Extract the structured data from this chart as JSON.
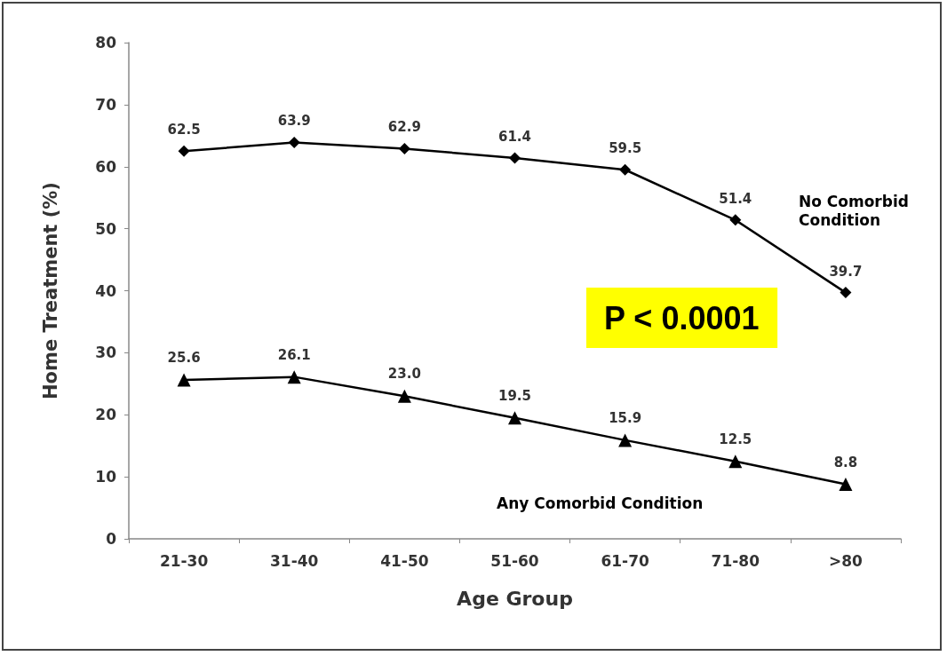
{
  "chart_data": {
    "type": "line",
    "xlabel": "Age Group",
    "ylabel": "Home Treatment (%)",
    "categories": [
      "21-30",
      "31-40",
      "41-50",
      "51-60",
      "61-70",
      "71-80",
      ">80"
    ],
    "series": [
      {
        "name": "No Comorbid Condition",
        "color": "#000000",
        "marker": "diamond",
        "values": [
          62.5,
          63.9,
          62.9,
          61.4,
          59.5,
          51.4,
          39.7
        ],
        "value_labels": [
          "62.5",
          "63.9",
          "62.9",
          "61.4",
          "59.5",
          "51.4",
          "39.7"
        ]
      },
      {
        "name": "Any Comorbid Condition",
        "color": "#000000",
        "marker": "triangle",
        "values": [
          25.6,
          26.1,
          23.0,
          19.5,
          15.9,
          12.5,
          8.8
        ],
        "value_labels": [
          "25.6",
          "26.1",
          "23.0",
          "19.5",
          "15.9",
          "12.5",
          "8.8"
        ]
      }
    ],
    "ylim": [
      0,
      80
    ],
    "yticks": [
      0,
      10,
      20,
      30,
      40,
      50,
      60,
      70,
      80
    ],
    "grid": false,
    "legend": false,
    "line_style": "solid",
    "annotations": [
      "P < 0.0001"
    ]
  }
}
